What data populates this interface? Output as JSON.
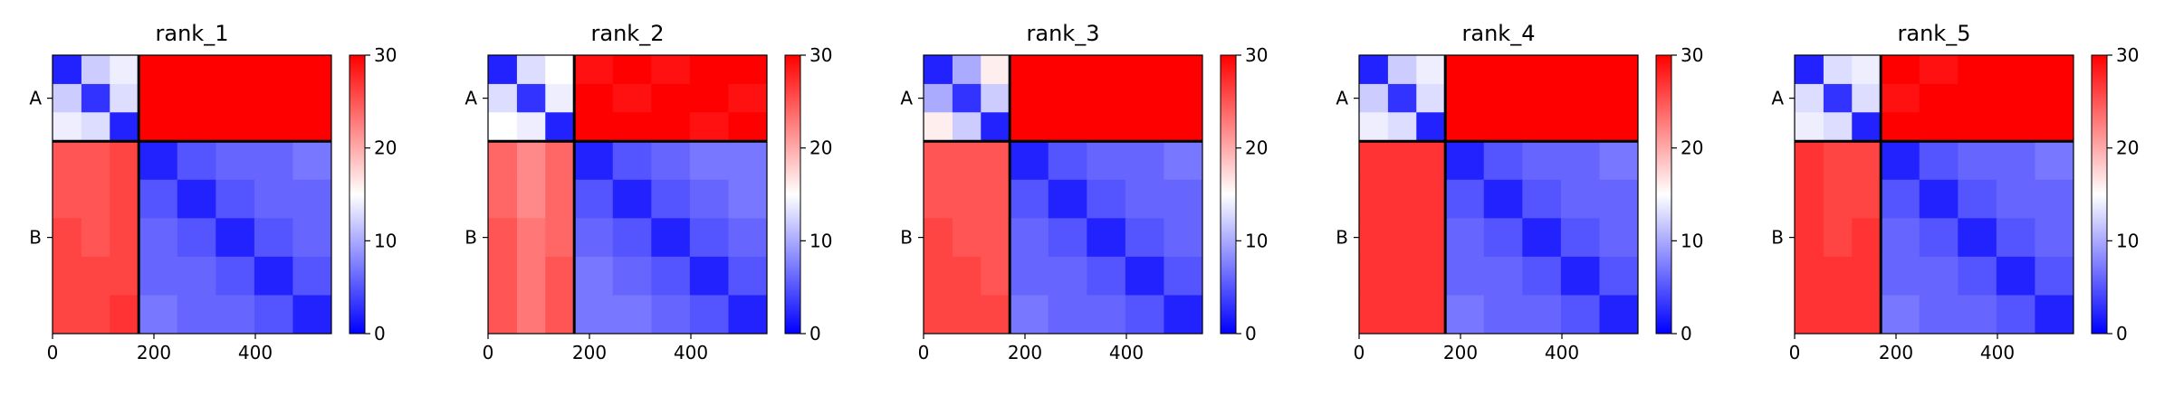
{
  "chart_data": [
    {
      "type": "heatmap",
      "title": "rank_1",
      "colormap": "bwr",
      "xlim": [
        0,
        550
      ],
      "ylim": [
        0,
        550
      ],
      "xticks": [
        0,
        200,
        400
      ],
      "yticks": [
        {
          "value": 85,
          "label": "A"
        },
        {
          "value": 360,
          "label": "B"
        }
      ],
      "edges": [
        0,
        57,
        113,
        170,
        246,
        322,
        398,
        474,
        550
      ],
      "chain_breaks": [
        170
      ],
      "clim": [
        0,
        30
      ],
      "cticks": [
        0,
        10,
        20,
        30
      ],
      "matrix": [
        [
          2,
          12,
          14,
          30,
          30,
          30,
          30,
          30
        ],
        [
          12,
          3,
          13,
          30,
          30,
          30,
          30,
          30
        ],
        [
          14,
          13,
          2,
          30,
          30,
          30,
          30,
          30
        ],
        [
          25,
          25,
          26,
          2,
          5,
          6,
          6,
          7
        ],
        [
          25,
          25,
          26,
          5,
          2,
          5,
          6,
          6
        ],
        [
          26,
          25,
          26,
          6,
          5,
          2,
          5,
          6
        ],
        [
          26,
          26,
          26,
          6,
          6,
          5,
          2,
          5
        ],
        [
          26,
          26,
          27,
          7,
          6,
          6,
          5,
          2
        ]
      ]
    },
    {
      "type": "heatmap",
      "title": "rank_2",
      "colormap": "bwr",
      "xlim": [
        0,
        550
      ],
      "ylim": [
        0,
        550
      ],
      "xticks": [
        0,
        200,
        400
      ],
      "yticks": [
        {
          "value": 85,
          "label": "A"
        },
        {
          "value": 360,
          "label": "B"
        }
      ],
      "edges": [
        0,
        57,
        113,
        170,
        246,
        322,
        398,
        474,
        550
      ],
      "chain_breaks": [
        170
      ],
      "clim": [
        0,
        30
      ],
      "cticks": [
        0,
        10,
        20,
        30
      ],
      "matrix": [
        [
          2,
          13,
          15,
          29,
          30,
          29,
          30,
          30
        ],
        [
          13,
          3,
          14,
          30,
          29,
          30,
          30,
          29
        ],
        [
          15,
          14,
          2,
          30,
          30,
          30,
          29,
          30
        ],
        [
          24,
          22,
          24,
          2,
          5,
          6,
          7,
          7
        ],
        [
          24,
          22,
          24,
          5,
          2,
          5,
          6,
          7
        ],
        [
          25,
          23,
          24,
          6,
          5,
          2,
          5,
          6
        ],
        [
          25,
          23,
          25,
          7,
          6,
          5,
          2,
          5
        ],
        [
          25,
          23,
          25,
          7,
          7,
          6,
          5,
          2
        ]
      ]
    },
    {
      "type": "heatmap",
      "title": "rank_3",
      "colormap": "bwr",
      "xlim": [
        0,
        550
      ],
      "ylim": [
        0,
        550
      ],
      "xticks": [
        0,
        200,
        400
      ],
      "yticks": [
        {
          "value": 85,
          "label": "A"
        },
        {
          "value": 360,
          "label": "B"
        }
      ],
      "edges": [
        0,
        57,
        113,
        170,
        246,
        322,
        398,
        474,
        550
      ],
      "chain_breaks": [
        170
      ],
      "clim": [
        0,
        30
      ],
      "cticks": [
        0,
        10,
        20,
        30
      ],
      "matrix": [
        [
          2,
          10,
          16,
          30,
          30,
          30,
          30,
          30
        ],
        [
          10,
          3,
          12,
          30,
          30,
          30,
          30,
          30
        ],
        [
          16,
          12,
          2,
          30,
          30,
          30,
          30,
          30
        ],
        [
          25,
          25,
          25,
          2,
          5,
          6,
          6,
          7
        ],
        [
          25,
          25,
          25,
          5,
          2,
          5,
          6,
          6
        ],
        [
          26,
          25,
          25,
          6,
          5,
          2,
          5,
          6
        ],
        [
          26,
          26,
          25,
          6,
          6,
          5,
          2,
          5
        ],
        [
          26,
          26,
          26,
          7,
          6,
          6,
          5,
          2
        ]
      ]
    },
    {
      "type": "heatmap",
      "title": "rank_4",
      "colormap": "bwr",
      "xlim": [
        0,
        550
      ],
      "ylim": [
        0,
        550
      ],
      "xticks": [
        0,
        200,
        400
      ],
      "yticks": [
        {
          "value": 85,
          "label": "A"
        },
        {
          "value": 360,
          "label": "B"
        }
      ],
      "edges": [
        0,
        57,
        113,
        170,
        246,
        322,
        398,
        474,
        550
      ],
      "chain_breaks": [
        170
      ],
      "clim": [
        0,
        30
      ],
      "cticks": [
        0,
        10,
        20,
        30
      ],
      "matrix": [
        [
          2,
          12,
          14,
          30,
          30,
          30,
          30,
          30
        ],
        [
          12,
          3,
          13,
          30,
          30,
          30,
          30,
          30
        ],
        [
          14,
          13,
          2,
          30,
          30,
          30,
          30,
          30
        ],
        [
          27,
          27,
          27,
          2,
          5,
          6,
          6,
          7
        ],
        [
          27,
          27,
          27,
          5,
          2,
          5,
          6,
          6
        ],
        [
          27,
          27,
          27,
          6,
          5,
          2,
          5,
          6
        ],
        [
          27,
          27,
          27,
          6,
          6,
          5,
          2,
          5
        ],
        [
          27,
          27,
          27,
          7,
          6,
          6,
          5,
          2
        ]
      ]
    },
    {
      "type": "heatmap",
      "title": "rank_5",
      "colormap": "bwr",
      "xlim": [
        0,
        550
      ],
      "ylim": [
        0,
        550
      ],
      "xticks": [
        0,
        200,
        400
      ],
      "yticks": [
        {
          "value": 85,
          "label": "A"
        },
        {
          "value": 360,
          "label": "B"
        }
      ],
      "edges": [
        0,
        57,
        113,
        170,
        246,
        322,
        398,
        474,
        550
      ],
      "chain_breaks": [
        170
      ],
      "clim": [
        0,
        30
      ],
      "cticks": [
        0,
        10,
        20,
        30
      ],
      "matrix": [
        [
          2,
          13,
          14,
          30,
          29,
          30,
          30,
          30
        ],
        [
          13,
          3,
          13,
          29,
          30,
          30,
          30,
          30
        ],
        [
          14,
          13,
          2,
          30,
          30,
          30,
          30,
          30
        ],
        [
          27,
          26,
          26,
          2,
          5,
          6,
          6,
          7
        ],
        [
          27,
          26,
          26,
          5,
          2,
          5,
          6,
          6
        ],
        [
          27,
          26,
          27,
          6,
          5,
          2,
          5,
          6
        ],
        [
          27,
          27,
          27,
          6,
          6,
          5,
          2,
          5
        ],
        [
          27,
          27,
          27,
          7,
          6,
          6,
          5,
          2
        ]
      ]
    }
  ]
}
